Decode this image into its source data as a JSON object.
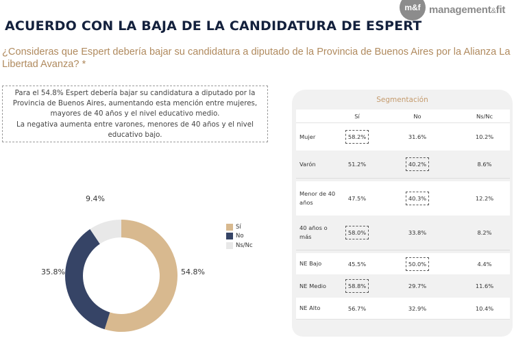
{
  "brand": {
    "logo_mark": "m&f",
    "logo_name_part1": "management",
    "logo_amp": "&",
    "logo_name_part2": "fit"
  },
  "header": {
    "title": "ACUERDO CON LA BAJA DE LA CANDIDATURA DE ESPERT",
    "question": "¿Consideras que Espert debería bajar su candidatura a diputado de la Provincia de Buenos Aires por la Alianza La Libertad Avanza? *"
  },
  "summary": {
    "lines": [
      "Para el 54.8% Espert debería bajar su candidatura a diputado por la",
      "Provincia de Buenos Aires, aumentando esta mención entre mujeres,",
      "mayores de 40 años y el nivel educativo medio.",
      "La negativa aumenta entre varones, menores de 40 años y el nivel",
      "educativo bajo."
    ]
  },
  "colors": {
    "si": "#d8b98f",
    "no": "#364466",
    "nsnc": "#e8e8e8",
    "title": "#14213d",
    "accent": "#c49a6c"
  },
  "chart_data": {
    "type": "pie",
    "variant": "donut",
    "categories": [
      "Sí",
      "No",
      "Ns/Nc"
    ],
    "values": [
      54.8,
      35.8,
      9.4
    ],
    "labels": [
      "54.8%",
      "35.8%",
      "9.4%"
    ],
    "legend": [
      "Sí",
      "No",
      "Ns/Nc"
    ],
    "legend_position": "right",
    "title": ""
  },
  "segmentation": {
    "title": "Segmentación",
    "columns": [
      "Sí",
      "No",
      "Ns/Nc"
    ],
    "groups": [
      {
        "rows": [
          {
            "label": "Mujer",
            "si": "58.2%",
            "no": "31.6%",
            "ns": "10.2%",
            "highlight": "si"
          },
          {
            "label": "Varón",
            "si": "51.2%",
            "no": "40.2%",
            "ns": "8.6%",
            "highlight": "no"
          }
        ]
      },
      {
        "rows": [
          {
            "label": "Menor de 40 años",
            "si": "47.5%",
            "no": "40.3%",
            "ns": "12.2%",
            "highlight": "no"
          },
          {
            "label": "40 años o más",
            "si": "58.0%",
            "no": "33.8%",
            "ns": "8.2%",
            "highlight": "si"
          }
        ]
      },
      {
        "rows": [
          {
            "label": "NE Bajo",
            "si": "45.5%",
            "no": "50.0%",
            "ns": "4.4%",
            "highlight": "no"
          },
          {
            "label": "NE Medio",
            "si": "58.8%",
            "no": "29.7%",
            "ns": "11.6%",
            "highlight": "si"
          },
          {
            "label": "NE Alto",
            "si": "56.7%",
            "no": "32.9%",
            "ns": "10.4%",
            "highlight": ""
          }
        ]
      }
    ]
  }
}
